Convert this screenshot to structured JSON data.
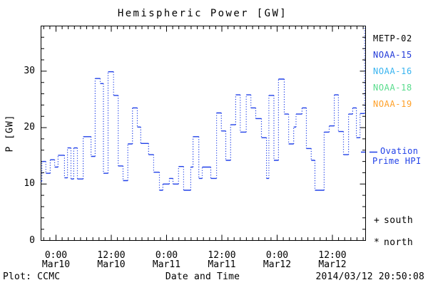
{
  "title": "Hemispheric Power [GW]",
  "axes": {
    "ylabel": "P [GW]",
    "xlabel": "Date and Time",
    "ylim": [
      0,
      38
    ],
    "y_major_ticks": [
      0,
      10,
      20,
      30
    ],
    "y_minor_step": 2,
    "xlim_hours": [
      -3.25,
      67.2
    ],
    "x_major_step_hours": 12,
    "x_minor_divisions": 9,
    "x_tick_labels": [
      {
        "time": "0:00",
        "date": "Mar10",
        "hour": 0
      },
      {
        "time": "12:00",
        "date": "Mar10",
        "hour": 12
      },
      {
        "time": "0:00",
        "date": "Mar11",
        "hour": 24
      },
      {
        "time": "12:00",
        "date": "Mar11",
        "hour": 36
      },
      {
        "time": "0:00",
        "date": "Mar12",
        "hour": 48
      },
      {
        "time": "12:00",
        "date": "Mar12",
        "hour": 60
      }
    ]
  },
  "legend": {
    "satellites": [
      {
        "label": "METP-02",
        "color": "#000000"
      },
      {
        "label": "NOAA-15",
        "color": "#2038d8"
      },
      {
        "label": "NOAA-16",
        "color": "#38b4f0"
      },
      {
        "label": "NOAA-18",
        "color": "#58dc8c"
      },
      {
        "label": "NOAA-19",
        "color": "#ffa028"
      }
    ],
    "ovation": {
      "line1": "Ovation",
      "line2": "Prime HPI",
      "color": "#2040e8"
    },
    "south": {
      "symbol": "+",
      "label": "south"
    },
    "north": {
      "symbol": "*",
      "label": "north"
    }
  },
  "footer": {
    "left": "Plot: CCMC",
    "right": "2014/03/12 20:50:08"
  },
  "chart_data": {
    "type": "line",
    "subtype": "step-histogram",
    "title": "Hemispheric Power [GW]",
    "xlabel": "Date and Time",
    "ylabel": "P [GW]",
    "ylim": [
      0,
      38
    ],
    "xlim_hours": [
      -3.25,
      67.2
    ],
    "x_unit": "hours from 2014-03-10 00:00 UT",
    "grid": false,
    "legend_position": "right",
    "series": [
      {
        "name": "Ovation Prime HPI",
        "color": "#2040e8",
        "line_style": "solid horizontal steps with dotted vertical risers",
        "points_hour_gw": [
          [
            -3.25,
            10.5
          ],
          [
            -3.05,
            14.0
          ],
          [
            -2.2,
            11.9
          ],
          [
            -1.25,
            14.3
          ],
          [
            -0.3,
            13.0
          ],
          [
            0.45,
            15.1
          ],
          [
            1.85,
            11.1
          ],
          [
            2.5,
            16.4
          ],
          [
            3.25,
            10.9
          ],
          [
            3.85,
            16.4
          ],
          [
            4.65,
            10.9
          ],
          [
            5.9,
            18.4
          ],
          [
            7.6,
            14.9
          ],
          [
            8.5,
            28.7
          ],
          [
            9.6,
            27.8
          ],
          [
            10.3,
            11.9
          ],
          [
            11.3,
            29.9
          ],
          [
            12.5,
            25.7
          ],
          [
            13.5,
            13.2
          ],
          [
            14.55,
            10.6
          ],
          [
            15.6,
            17.1
          ],
          [
            16.6,
            23.5
          ],
          [
            17.65,
            20.1
          ],
          [
            18.4,
            17.2
          ],
          [
            20.1,
            15.2
          ],
          [
            21.2,
            12.1
          ],
          [
            22.45,
            8.9
          ],
          [
            23.2,
            10.0
          ],
          [
            24.6,
            11.0
          ],
          [
            25.4,
            10.0
          ],
          [
            26.6,
            13.1
          ],
          [
            27.7,
            8.9
          ],
          [
            29.25,
            13.0
          ],
          [
            29.75,
            18.4
          ],
          [
            31.0,
            11.0
          ],
          [
            31.75,
            13.0
          ],
          [
            33.6,
            11.0
          ],
          [
            34.85,
            22.6
          ],
          [
            35.9,
            19.4
          ],
          [
            36.85,
            14.2
          ],
          [
            37.9,
            20.5
          ],
          [
            39.0,
            25.8
          ],
          [
            40.0,
            19.2
          ],
          [
            41.3,
            25.8
          ],
          [
            42.3,
            23.5
          ],
          [
            43.35,
            21.6
          ],
          [
            44.6,
            18.2
          ],
          [
            45.7,
            11.0
          ],
          [
            46.2,
            25.7
          ],
          [
            47.3,
            14.2
          ],
          [
            48.3,
            28.6
          ],
          [
            49.55,
            22.4
          ],
          [
            50.5,
            17.1
          ],
          [
            51.6,
            20.1
          ],
          [
            52.1,
            22.4
          ],
          [
            53.4,
            23.5
          ],
          [
            54.35,
            16.3
          ],
          [
            55.4,
            14.2
          ],
          [
            56.2,
            8.9
          ],
          [
            58.2,
            19.2
          ],
          [
            59.3,
            20.3
          ],
          [
            60.4,
            25.8
          ],
          [
            61.3,
            19.3
          ],
          [
            62.4,
            15.2
          ],
          [
            63.5,
            22.4
          ],
          [
            64.4,
            23.5
          ],
          [
            65.2,
            18.2
          ],
          [
            66.0,
            22.5
          ],
          [
            67.0,
            38.0
          ]
        ],
        "note": "final riser clipped at top of axis"
      }
    ]
  }
}
